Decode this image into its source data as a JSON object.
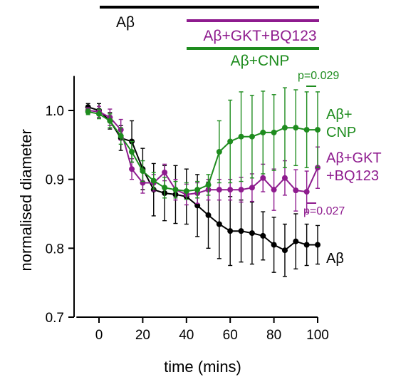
{
  "chart_data": {
    "type": "line",
    "xlabel": "time (mins)",
    "ylabel": "normalised diameter",
    "xlim": [
      -10,
      100
    ],
    "ylim": [
      0.7,
      1.05
    ],
    "xticks": [
      0,
      20,
      40,
      60,
      80,
      100
    ],
    "yticks": [
      0.7,
      0.8,
      0.9,
      1.0
    ],
    "xtick_labels": [
      "0",
      "20",
      "40",
      "60",
      "80",
      "100"
    ],
    "ytick_labels": [
      "0.7",
      "0.8",
      "0.9",
      "1.0"
    ],
    "grid": false,
    "treatment_bars": [
      {
        "label": "Aβ",
        "start": -5,
        "end": 100,
        "color": "#000000"
      },
      {
        "label": "Aβ+GKT+BQ123",
        "start": 40,
        "end": 100,
        "color": "#8e1b8e"
      },
      {
        "label": "Aβ+CNP",
        "start": 40,
        "end": 100,
        "color": "#1e8c1e"
      }
    ],
    "series": [
      {
        "name": "Aβ",
        "color": "#000000",
        "x": [
          -5,
          0,
          5,
          10,
          15,
          20,
          25,
          30,
          35,
          40,
          45,
          50,
          55,
          60,
          65,
          70,
          75,
          80,
          85,
          90,
          95,
          100
        ],
        "y": [
          1.005,
          1.0,
          0.985,
          0.96,
          0.955,
          0.915,
          0.885,
          0.88,
          0.878,
          0.875,
          0.862,
          0.848,
          0.835,
          0.825,
          0.825,
          0.822,
          0.818,
          0.805,
          0.797,
          0.81,
          0.805,
          0.805
        ],
        "err": [
          0.005,
          0.01,
          0.012,
          0.018,
          0.03,
          0.03,
          0.038,
          0.04,
          0.042,
          0.04,
          0.045,
          0.048,
          0.05,
          0.05,
          0.045,
          0.045,
          0.035,
          0.04,
          0.038,
          0.04,
          0.03,
          0.028
        ]
      },
      {
        "name": "Aβ+GKT+BQ123",
        "color": "#8e1b8e",
        "x": [
          -5,
          0,
          5,
          10,
          15,
          20,
          25,
          30,
          35,
          40,
          45,
          50,
          55,
          60,
          65,
          70,
          75,
          80,
          85,
          90,
          95,
          100
        ],
        "y": [
          1.0,
          0.998,
          0.99,
          0.972,
          0.915,
          0.895,
          0.895,
          0.91,
          0.885,
          0.878,
          0.88,
          0.885,
          0.885,
          0.885,
          0.885,
          0.888,
          0.902,
          0.885,
          0.902,
          0.884,
          0.882,
          0.917
        ],
        "err": [
          0.004,
          0.008,
          0.012,
          0.015,
          0.015,
          0.015,
          0.012,
          0.012,
          0.015,
          0.015,
          0.015,
          0.015,
          0.015,
          0.015,
          0.018,
          0.02,
          0.02,
          0.03,
          0.025,
          0.03,
          0.03,
          0.03
        ]
      },
      {
        "name": "Aβ+CNP",
        "color": "#1e8c1e",
        "x": [
          -5,
          0,
          5,
          10,
          15,
          20,
          25,
          30,
          35,
          40,
          45,
          50,
          55,
          60,
          65,
          70,
          75,
          80,
          85,
          90,
          95,
          100
        ],
        "y": [
          0.998,
          0.995,
          0.985,
          0.963,
          0.94,
          0.912,
          0.898,
          0.888,
          0.885,
          0.883,
          0.885,
          0.892,
          0.94,
          0.955,
          0.962,
          0.962,
          0.968,
          0.968,
          0.975,
          0.975,
          0.972,
          0.972
        ],
        "err": [
          0.004,
          0.007,
          0.01,
          0.012,
          0.015,
          0.015,
          0.012,
          0.015,
          0.012,
          0.012,
          0.012,
          0.015,
          0.045,
          0.06,
          0.065,
          0.06,
          0.06,
          0.055,
          0.058,
          0.055,
          0.055,
          0.055
        ]
      }
    ],
    "series_labels": [
      {
        "series": 2,
        "lines": [
          "Aβ+",
          "CNP"
        ]
      },
      {
        "series": 1,
        "lines": [
          "Aβ+GKT",
          "+BQ123"
        ]
      },
      {
        "series": 0,
        "lines": [
          "Aβ"
        ]
      }
    ],
    "annotations": [
      {
        "text": "p=0.029",
        "color": "#1e8c1e",
        "y_value": 1.029
      },
      {
        "text": "p=0.027",
        "color": "#8e1b8e",
        "y_value": 0.855
      }
    ]
  }
}
